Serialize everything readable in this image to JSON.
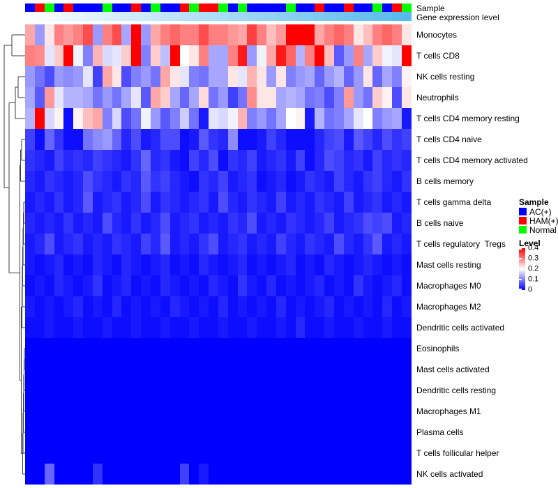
{
  "annotations": {
    "sample_label": "Sample",
    "gene_label": "Gene expression level"
  },
  "legends": {
    "sample": {
      "title": "Sample",
      "items": [
        {
          "label": "AC(+)",
          "color": "#0000FF"
        },
        {
          "label": "HAM(+)",
          "color": "#FF0000"
        },
        {
          "label": "Normal",
          "color": "#00FF00"
        }
      ]
    },
    "level": {
      "title": "Level",
      "ticks": [
        "0.4",
        "0.3",
        "0.2",
        "0.1",
        "0"
      ]
    }
  },
  "chart_data": {
    "type": "heatmap",
    "title": "",
    "xlabel": "",
    "ylabel": "",
    "grid": false,
    "legend_position": "right",
    "columns": 40,
    "value_range": [
      0,
      0.44
    ],
    "colormap": {
      "low": "#0000FF",
      "mid": "#FFFFFF",
      "high": "#FF0000",
      "domain": [
        0,
        0.2,
        0.4
      ]
    },
    "rows": [
      "Monocytes",
      "T cells CD8",
      "NK cells resting",
      "Neutrophils",
      "T cells CD4 memory resting",
      "T cells CD4 naive",
      "T cells CD4 memory activated",
      "B cells memory",
      "T cells gamma delta",
      "B cells naive",
      "T cells regulatory  Tregs",
      "Mast cells resting",
      "Macrophages M0",
      "Macrophages M2",
      "Dendritic cells activated",
      "Eosinophils",
      "Mast cells activated",
      "Dendritic cells resting",
      "Macrophages M1",
      "Plasma cells",
      "T cells follicular helper",
      "NK cells activated"
    ],
    "column_annotation_sample": {
      "label": "Sample",
      "groups": [
        "AC(+)",
        "HAM(+)",
        "Normal",
        "AC(+)",
        "HAM(+)",
        "AC(+)",
        "AC(+)",
        "AC(+)",
        "Normal",
        "AC(+)",
        "AC(+)",
        "HAM(+)",
        "AC(+)",
        "Normal",
        "AC(+)",
        "AC(+)",
        "HAM(+)",
        "Normal",
        "HAM(+)",
        "HAM(+)",
        "Normal",
        "AC(+)",
        "Normal",
        "AC(+)",
        "AC(+)",
        "AC(+)",
        "AC(+)",
        "Normal",
        "AC(+)",
        "AC(+)",
        "HAM(+)",
        "AC(+)",
        "AC(+)",
        "HAM(+)",
        "AC(+)",
        "AC(+)",
        "Normal",
        "AC(+)",
        "HAM(+)",
        "Normal"
      ]
    },
    "column_annotation_gene": {
      "label": "Gene expression level",
      "gradient_from": "#FDFEFF",
      "gradient_to": "#57B9EC"
    },
    "values": [
      [
        0.27,
        0.12,
        0.22,
        0.3,
        0.28,
        0.3,
        0.34,
        0.12,
        0.3,
        0.34,
        0.13,
        0.42,
        0.12,
        0.27,
        0.3,
        0.32,
        0.3,
        0.3,
        0.34,
        0.3,
        0.3,
        0.28,
        0.27,
        0.35,
        0.3,
        0.25,
        0.28,
        0.4,
        0.44,
        0.42,
        0.27,
        0.3,
        0.32,
        0.3,
        0.22,
        0.25,
        0.3,
        0.32,
        0.3,
        0.22
      ],
      [
        0.3,
        0.29,
        0.18,
        0.24,
        0.42,
        0.19,
        0.1,
        0.26,
        0.17,
        0.18,
        0.24,
        0.4,
        0.1,
        0.24,
        0.15,
        0.42,
        0.2,
        0.22,
        0.3,
        0.13,
        0.13,
        0.3,
        0.38,
        0.12,
        0.19,
        0.27,
        0.38,
        0.32,
        0.14,
        0.3,
        0.42,
        0.25,
        0.07,
        0.12,
        0.3,
        0.13,
        0.24,
        0.19,
        0.18,
        0.42
      ],
      [
        0.12,
        0.09,
        0.06,
        0.12,
        0.11,
        0.12,
        0.18,
        0.05,
        0.27,
        0.22,
        0.06,
        0.1,
        0.12,
        0.09,
        0.27,
        0.22,
        0.18,
        0.1,
        0.09,
        0.13,
        0.13,
        0.22,
        0.18,
        0.26,
        0.22,
        0.12,
        0.22,
        0.1,
        0.12,
        0.13,
        0.08,
        0.12,
        0.14,
        0.08,
        0.12,
        0.22,
        0.08,
        0.13,
        0.1,
        0.21
      ],
      [
        0.13,
        0.07,
        0.28,
        0.18,
        0.14,
        0.14,
        0.13,
        0.09,
        0.12,
        0.09,
        0.13,
        0.18,
        0.07,
        0.27,
        0.24,
        0.13,
        0.08,
        0.13,
        0.23,
        0.09,
        0.12,
        0.05,
        0.09,
        0.29,
        0.22,
        0.22,
        0.13,
        0.14,
        0.13,
        0.09,
        0.1,
        0.06,
        0.1,
        0.28,
        0.12,
        0.09,
        0.24,
        0.21,
        0.06,
        0.22
      ],
      [
        0.14,
        0.42,
        0.17,
        0.21,
        0.01,
        0.21,
        0.25,
        0.27,
        0.1,
        0.17,
        0.06,
        0.09,
        0.19,
        0.12,
        0.07,
        0.1,
        0.16,
        0.09,
        0.02,
        0.18,
        0.17,
        0.19,
        0.26,
        0.1,
        0.12,
        0.09,
        0.13,
        0.2,
        0.21,
        0.02,
        0.14,
        0.09,
        0.1,
        0.13,
        0.18,
        0.2,
        0.1,
        0.12,
        0.13,
        0.02
      ],
      [
        0.05,
        0.01,
        0.08,
        0.04,
        0.01,
        0.01,
        0.09,
        0.11,
        0.12,
        0.08,
        0.03,
        0.06,
        0.02,
        0.03,
        0.06,
        0.06,
        0.01,
        0.02,
        0.07,
        0.04,
        0.03,
        0.11,
        0.01,
        0.01,
        0.02,
        0.05,
        0.03,
        0.01,
        0.01,
        0.01,
        0.03,
        0.05,
        0.06,
        0.02,
        0.07,
        0.05,
        0.03,
        0.06,
        0.04,
        0.05
      ],
      [
        0.04,
        0.03,
        0.02,
        0.05,
        0.03,
        0.04,
        0.03,
        0.05,
        0.04,
        0.03,
        0.02,
        0.04,
        0.08,
        0.03,
        0.04,
        0.02,
        0.01,
        0.05,
        0.03,
        0.06,
        0.01,
        0.04,
        0.03,
        0.05,
        0.02,
        0.03,
        0.04,
        0.02,
        0.05,
        0.01,
        0.03,
        0.06,
        0.05,
        0.03,
        0.04,
        0.02,
        0.05,
        0.03,
        0.04,
        0.03
      ],
      [
        0.03,
        0.02,
        0.04,
        0.03,
        0.02,
        0.03,
        0.06,
        0.04,
        0.03,
        0.02,
        0.04,
        0.03,
        0.07,
        0.04,
        0.05,
        0.03,
        0.02,
        0.01,
        0.04,
        0.03,
        0.05,
        0.02,
        0.03,
        0.04,
        0.01,
        0.02,
        0.03,
        0.01,
        0.02,
        0.04,
        0.03,
        0.02,
        0.05,
        0.03,
        0.02,
        0.04,
        0.05,
        0.03,
        0.02,
        0.04
      ],
      [
        0.02,
        0.03,
        0.02,
        0.04,
        0.02,
        0.03,
        0.07,
        0.02,
        0.03,
        0.04,
        0.02,
        0.03,
        0.06,
        0.02,
        0.04,
        0.03,
        0.02,
        0.03,
        0.04,
        0.02,
        0.06,
        0.03,
        0.02,
        0.04,
        0.03,
        0.02,
        0.05,
        0.02,
        0.03,
        0.02,
        0.04,
        0.03,
        0.02,
        0.05,
        0.02,
        0.03,
        0.04,
        0.02,
        0.03,
        0.02
      ],
      [
        0.03,
        0.02,
        0.03,
        0.02,
        0.04,
        0.02,
        0.03,
        0.02,
        0.06,
        0.03,
        0.02,
        0.04,
        0.02,
        0.03,
        0.06,
        0.02,
        0.03,
        0.04,
        0.02,
        0.03,
        0.02,
        0.04,
        0.03,
        0.06,
        0.02,
        0.03,
        0.02,
        0.04,
        0.03,
        0.02,
        0.03,
        0.05,
        0.02,
        0.03,
        0.04,
        0.06,
        0.05,
        0.06,
        0.02,
        0.03
      ],
      [
        0.02,
        0.03,
        0.06,
        0.02,
        0.03,
        0.04,
        0.02,
        0.03,
        0.02,
        0.04,
        0.03,
        0.02,
        0.05,
        0.03,
        0.07,
        0.02,
        0.03,
        0.02,
        0.04,
        0.06,
        0.02,
        0.03,
        0.04,
        0.02,
        0.03,
        0.02,
        0.05,
        0.03,
        0.02,
        0.04,
        0.03,
        0.02,
        0.06,
        0.03,
        0.02,
        0.04,
        0.07,
        0.02,
        0.03,
        0.02
      ],
      [
        0.02,
        0.01,
        0.02,
        0.03,
        0.01,
        0.02,
        0.01,
        0.03,
        0.02,
        0.01,
        0.03,
        0.02,
        0.01,
        0.02,
        0.03,
        0.01,
        0.02,
        0.01,
        0.03,
        0.02,
        0.01,
        0.02,
        0.03,
        0.01,
        0.02,
        0.01,
        0.02,
        0.03,
        0.01,
        0.02,
        0.01,
        0.03,
        0.02,
        0.01,
        0.02,
        0.03,
        0.02,
        0.01,
        0.02,
        0.01
      ],
      [
        0.01,
        0.02,
        0.01,
        0.03,
        0.02,
        0.01,
        0.02,
        0.04,
        0.01,
        0.02,
        0.03,
        0.01,
        0.02,
        0.01,
        0.03,
        0.02,
        0.01,
        0.02,
        0.01,
        0.03,
        0.02,
        0.01,
        0.04,
        0.02,
        0.01,
        0.03,
        0.01,
        0.02,
        0.01,
        0.02,
        0.03,
        0.01,
        0.02,
        0.01,
        0.04,
        0.02,
        0.01,
        0.02,
        0.03,
        0.01
      ],
      [
        0.02,
        0.01,
        0.02,
        0.01,
        0.02,
        0.03,
        0.01,
        0.02,
        0.01,
        0.03,
        0.01,
        0.02,
        0.01,
        0.02,
        0.01,
        0.03,
        0.02,
        0.01,
        0.02,
        0.01,
        0.03,
        0.01,
        0.02,
        0.01,
        0.02,
        0.01,
        0.03,
        0.01,
        0.02,
        0.01,
        0.02,
        0.03,
        0.01,
        0.02,
        0.01,
        0.02,
        0.01,
        0.03,
        0.01,
        0.02
      ],
      [
        0.01,
        0.01,
        0.02,
        0.01,
        0.01,
        0.02,
        0.01,
        0.01,
        0.02,
        0.01,
        0.01,
        0.02,
        0.01,
        0.01,
        0.02,
        0.01,
        0.01,
        0.02,
        0.01,
        0.01,
        0.02,
        0.01,
        0.01,
        0.02,
        0.01,
        0.01,
        0.02,
        0.01,
        0.03,
        0.01,
        0.01,
        0.02,
        0.01,
        0.01,
        0.02,
        0.01,
        0.01,
        0.02,
        0.01,
        0.01
      ],
      [
        0,
        0,
        0,
        0,
        0,
        0,
        0,
        0,
        0,
        0,
        0,
        0,
        0,
        0,
        0,
        0,
        0,
        0,
        0,
        0,
        0,
        0,
        0,
        0,
        0,
        0,
        0,
        0,
        0,
        0,
        0,
        0,
        0,
        0,
        0,
        0,
        0,
        0,
        0,
        0
      ],
      [
        0,
        0,
        0,
        0,
        0,
        0,
        0,
        0,
        0,
        0,
        0,
        0,
        0,
        0,
        0,
        0,
        0,
        0,
        0,
        0,
        0,
        0,
        0,
        0,
        0,
        0,
        0,
        0,
        0,
        0,
        0,
        0,
        0,
        0,
        0,
        0,
        0,
        0,
        0,
        0
      ],
      [
        0,
        0,
        0,
        0,
        0,
        0,
        0,
        0,
        0,
        0,
        0,
        0,
        0,
        0,
        0,
        0,
        0,
        0,
        0,
        0,
        0,
        0,
        0,
        0,
        0,
        0,
        0,
        0,
        0,
        0,
        0,
        0,
        0,
        0,
        0,
        0,
        0,
        0,
        0,
        0
      ],
      [
        0,
        0,
        0,
        0,
        0,
        0,
        0,
        0,
        0,
        0,
        0,
        0,
        0,
        0,
        0,
        0,
        0,
        0,
        0,
        0,
        0,
        0,
        0,
        0,
        0,
        0,
        0,
        0,
        0,
        0,
        0,
        0,
        0,
        0,
        0,
        0,
        0,
        0,
        0,
        0
      ],
      [
        0,
        0,
        0,
        0,
        0,
        0,
        0,
        0,
        0,
        0,
        0,
        0,
        0,
        0,
        0,
        0,
        0,
        0,
        0,
        0,
        0,
        0,
        0,
        0,
        0,
        0,
        0,
        0,
        0,
        0,
        0,
        0,
        0,
        0,
        0,
        0,
        0,
        0,
        0,
        0
      ],
      [
        0,
        0,
        0,
        0,
        0,
        0,
        0,
        0,
        0,
        0,
        0,
        0,
        0,
        0,
        0,
        0,
        0,
        0,
        0,
        0,
        0,
        0,
        0,
        0,
        0,
        0,
        0,
        0,
        0,
        0,
        0,
        0,
        0,
        0,
        0,
        0,
        0,
        0,
        0,
        0
      ],
      [
        0,
        0,
        0.08,
        0,
        0,
        0,
        0,
        0.04,
        0,
        0,
        0,
        0,
        0,
        0,
        0,
        0,
        0.05,
        0,
        0.02,
        0,
        0,
        0,
        0,
        0,
        0,
        0,
        0,
        0,
        0,
        0,
        0,
        0,
        0,
        0,
        0,
        0,
        0,
        0,
        0,
        0
      ]
    ],
    "dendrogram_segments": [
      [
        36,
        50,
        17,
        50
      ],
      [
        36,
        80,
        17,
        80
      ],
      [
        17,
        50,
        17,
        80
      ],
      [
        36,
        110,
        26,
        110
      ],
      [
        36,
        140,
        26,
        140
      ],
      [
        26,
        110,
        26,
        140
      ],
      [
        26,
        125,
        22,
        125
      ],
      [
        36,
        170,
        22,
        170
      ],
      [
        22,
        125,
        22,
        170
      ],
      [
        36,
        200,
        31,
        200
      ],
      [
        36,
        230,
        31,
        230
      ],
      [
        31,
        200,
        31,
        230
      ],
      [
        31,
        215,
        29.5,
        215
      ],
      [
        36,
        260,
        29.5,
        260
      ],
      [
        29.5,
        215,
        29.5,
        260
      ],
      [
        36,
        290,
        34,
        290
      ],
      [
        36,
        320,
        34,
        320
      ],
      [
        34,
        290,
        34,
        320
      ],
      [
        34,
        305,
        33.5,
        305
      ],
      [
        36,
        350,
        33.5,
        350
      ],
      [
        33.5,
        305,
        33.5,
        350
      ],
      [
        33.5,
        327.5,
        33,
        327.5
      ],
      [
        36,
        380,
        33,
        380
      ],
      [
        33,
        327.5,
        33,
        380
      ],
      [
        33,
        353.8,
        32.5,
        353.8
      ],
      [
        36,
        410,
        32.5,
        410
      ],
      [
        32.5,
        353.8,
        32.5,
        410
      ],
      [
        32.5,
        381.9,
        32,
        381.9
      ],
      [
        36,
        440,
        32,
        440
      ],
      [
        32,
        381.9,
        32,
        440
      ],
      [
        32,
        410.9,
        31.5,
        410.9
      ],
      [
        36,
        470,
        31.5,
        470
      ],
      [
        31.5,
        410.9,
        31.5,
        470
      ],
      [
        36,
        500,
        35,
        500
      ],
      [
        36,
        530,
        35,
        530
      ],
      [
        35,
        500,
        35,
        530
      ],
      [
        35,
        515,
        34.5,
        515
      ],
      [
        36,
        560,
        34.5,
        560
      ],
      [
        34.5,
        515,
        34.5,
        560
      ],
      [
        34.5,
        537.5,
        34,
        537.5
      ],
      [
        36,
        590,
        34,
        590
      ],
      [
        34,
        537.5,
        34,
        590
      ],
      [
        34,
        563.8,
        33.5,
        563.8
      ],
      [
        36,
        620,
        33.5,
        620
      ],
      [
        33.5,
        563.8,
        33.5,
        620
      ],
      [
        33.5,
        591.9,
        33,
        591.9
      ],
      [
        36,
        650,
        33,
        650
      ],
      [
        33,
        591.9,
        33,
        650
      ],
      [
        33,
        620.9,
        32.5,
        620.9
      ],
      [
        36,
        680,
        32.5,
        680
      ],
      [
        32.5,
        620.9,
        32.5,
        680
      ],
      [
        31.5,
        440.5,
        30.5,
        440.5
      ],
      [
        32.5,
        650.5,
        30.5,
        650.5
      ],
      [
        30.5,
        440.5,
        30.5,
        650.5
      ],
      [
        29.5,
        237.5,
        28.5,
        237.5
      ],
      [
        30.5,
        545.5,
        28.5,
        545.5
      ],
      [
        28.5,
        237.5,
        28.5,
        545.5
      ],
      [
        22,
        147.5,
        13,
        147.5
      ],
      [
        28.5,
        391.5,
        13,
        391.5
      ],
      [
        13,
        147.5,
        13,
        391.5
      ],
      [
        17,
        65,
        6,
        65
      ],
      [
        13,
        269.5,
        6,
        269.5
      ],
      [
        6,
        65,
        6,
        269.5
      ]
    ]
  }
}
